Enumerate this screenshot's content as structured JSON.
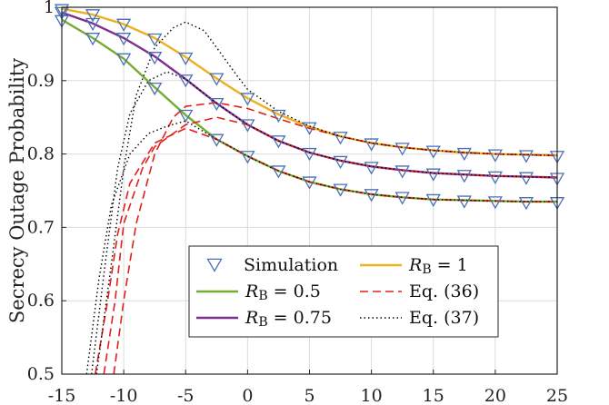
{
  "chart_data": {
    "type": "line",
    "title": "",
    "xlabel": "",
    "ylabel": "Secrecy Outage Probability",
    "xlim": [
      -15,
      25
    ],
    "ylim": [
      0.5,
      1
    ],
    "grid": true,
    "legend_position": "bottom-center",
    "xticks": [
      "-15",
      "-10",
      "-5",
      "0",
      "5",
      "10",
      "15",
      "20",
      "25"
    ],
    "yticks": [
      "0.5",
      "0.6",
      "0.7",
      "0.8",
      "0.9",
      "1"
    ],
    "x": [
      -15,
      -12.5,
      -10,
      -7.5,
      -5,
      -2.5,
      0,
      2.5,
      5,
      7.5,
      10,
      12.5,
      15,
      17.5,
      20,
      22.5,
      25
    ],
    "legend": [
      {
        "label": "Simulation",
        "sub": "",
        "eq": "",
        "style": "marker"
      },
      {
        "label": "R",
        "sub": "B",
        "eq": " = 1",
        "style": "line",
        "color": "#EDB120"
      },
      {
        "label": "R",
        "sub": "B",
        "eq": " = 0.5",
        "style": "line",
        "color": "#77AC30"
      },
      {
        "label": "Eq. (36)",
        "sub": "",
        "eq": "",
        "style": "dashed",
        "color": "#E0201B"
      },
      {
        "label": "R",
        "sub": "B",
        "eq": " = 0.75",
        "style": "line",
        "color": "#7E2F8E"
      },
      {
        "label": "Eq. (37)",
        "sub": "",
        "eq": "",
        "style": "dotted",
        "color": "#000000"
      }
    ],
    "series": [
      {
        "name": "RB = 1",
        "kind": "solid",
        "color": "#EDB120",
        "values": [
          0.998,
          0.99,
          0.977,
          0.958,
          0.932,
          0.903,
          0.876,
          0.854,
          0.837,
          0.824,
          0.815,
          0.809,
          0.805,
          0.802,
          0.8,
          0.799,
          0.798
        ]
      },
      {
        "name": "RB = 0.75",
        "kind": "solid",
        "color": "#7E2F8E",
        "values": [
          0.993,
          0.978,
          0.958,
          0.933,
          0.902,
          0.869,
          0.84,
          0.818,
          0.802,
          0.791,
          0.783,
          0.778,
          0.774,
          0.772,
          0.77,
          0.769,
          0.768
        ]
      },
      {
        "name": "RB = 0.5",
        "kind": "solid",
        "color": "#77AC30",
        "values": [
          0.983,
          0.958,
          0.93,
          0.891,
          0.853,
          0.82,
          0.797,
          0.777,
          0.762,
          0.752,
          0.745,
          0.741,
          0.738,
          0.737,
          0.736,
          0.735,
          0.735
        ]
      },
      {
        "name": "Eq. (36) RB = 1",
        "kind": "dashed",
        "color": "#E0201B",
        "points": [
          [
            -10.8,
            0.5
          ],
          [
            -10,
            0.6
          ],
          [
            -9,
            0.705
          ],
          [
            -7.5,
            0.8
          ],
          [
            -6,
            0.85
          ],
          [
            -5,
            0.865
          ],
          [
            -2.5,
            0.87
          ],
          [
            0,
            0.862
          ],
          [
            2.5,
            0.848
          ],
          [
            5,
            0.835
          ],
          [
            7.5,
            0.824
          ],
          [
            10,
            0.815
          ],
          [
            12.5,
            0.809
          ],
          [
            15,
            0.805
          ],
          [
            17.5,
            0.802
          ],
          [
            20,
            0.8
          ],
          [
            22.5,
            0.799
          ],
          [
            25,
            0.798
          ]
        ]
      },
      {
        "name": "Eq. (36) RB = 0.75",
        "kind": "dashed",
        "color": "#E0201B",
        "points": [
          [
            -11.6,
            0.5
          ],
          [
            -10.7,
            0.6
          ],
          [
            -10,
            0.705
          ],
          [
            -8.5,
            0.78
          ],
          [
            -7.5,
            0.81
          ],
          [
            -5,
            0.84
          ],
          [
            -2.5,
            0.85
          ],
          [
            0,
            0.84
          ],
          [
            2.5,
            0.818
          ],
          [
            5,
            0.802
          ],
          [
            7.5,
            0.791
          ],
          [
            10,
            0.783
          ],
          [
            12.5,
            0.778
          ],
          [
            15,
            0.774
          ],
          [
            17.5,
            0.772
          ],
          [
            20,
            0.77
          ],
          [
            22.5,
            0.769
          ],
          [
            25,
            0.768
          ]
        ]
      },
      {
        "name": "Eq. (36) RB = 0.5",
        "kind": "dashed",
        "color": "#E0201B",
        "points": [
          [
            -12.3,
            0.5
          ],
          [
            -11.3,
            0.6
          ],
          [
            -10.5,
            0.69
          ],
          [
            -9.5,
            0.76
          ],
          [
            -7.5,
            0.815
          ],
          [
            -5,
            0.835
          ],
          [
            -2.5,
            0.82
          ],
          [
            0,
            0.797
          ],
          [
            2.5,
            0.777
          ],
          [
            5,
            0.762
          ],
          [
            7.5,
            0.752
          ],
          [
            10,
            0.745
          ],
          [
            12.5,
            0.741
          ],
          [
            15,
            0.738
          ],
          [
            17.5,
            0.737
          ],
          [
            20,
            0.736
          ],
          [
            22.5,
            0.735
          ],
          [
            25,
            0.735
          ]
        ]
      },
      {
        "name": "Eq. (37) RB = 1",
        "kind": "dotted",
        "color": "#000000",
        "points": [
          [
            -12.2,
            0.5
          ],
          [
            -11,
            0.65
          ],
          [
            -10,
            0.78
          ],
          [
            -9,
            0.88
          ],
          [
            -7.5,
            0.945
          ],
          [
            -6,
            0.972
          ],
          [
            -5,
            0.98
          ],
          [
            -3.5,
            0.968
          ],
          [
            -2.5,
            0.945
          ],
          [
            -1,
            0.91
          ],
          [
            0,
            0.888
          ],
          [
            2.5,
            0.858
          ],
          [
            5,
            0.838
          ],
          [
            7.5,
            0.824
          ],
          [
            10,
            0.815
          ],
          [
            12.5,
            0.809
          ],
          [
            15,
            0.805
          ],
          [
            17.5,
            0.802
          ],
          [
            20,
            0.8
          ],
          [
            22.5,
            0.799
          ],
          [
            25,
            0.798
          ]
        ]
      },
      {
        "name": "Eq. (37) RB = 0.75",
        "kind": "dotted",
        "color": "#000000",
        "points": [
          [
            -12.6,
            0.5
          ],
          [
            -11.5,
            0.65
          ],
          [
            -10.5,
            0.78
          ],
          [
            -9.5,
            0.855
          ],
          [
            -8,
            0.9
          ],
          [
            -6.5,
            0.912
          ],
          [
            -5,
            0.902
          ],
          [
            -2.5,
            0.869
          ],
          [
            0,
            0.84
          ],
          [
            2.5,
            0.818
          ],
          [
            5,
            0.802
          ],
          [
            7.5,
            0.791
          ],
          [
            10,
            0.783
          ],
          [
            12.5,
            0.778
          ],
          [
            15,
            0.774
          ],
          [
            17.5,
            0.772
          ],
          [
            20,
            0.77
          ],
          [
            22.5,
            0.769
          ],
          [
            25,
            0.768
          ]
        ]
      },
      {
        "name": "Eq. (37) RB = 0.5",
        "kind": "dotted",
        "color": "#000000",
        "points": [
          [
            -13,
            0.5
          ],
          [
            -12,
            0.63
          ],
          [
            -11,
            0.73
          ],
          [
            -9.5,
            0.8
          ],
          [
            -8,
            0.828
          ],
          [
            -6.5,
            0.838
          ],
          [
            -5,
            0.845
          ],
          [
            -2.5,
            0.82
          ],
          [
            0,
            0.797
          ],
          [
            2.5,
            0.777
          ],
          [
            5,
            0.762
          ],
          [
            7.5,
            0.752
          ],
          [
            10,
            0.745
          ],
          [
            12.5,
            0.741
          ],
          [
            15,
            0.738
          ],
          [
            17.5,
            0.737
          ],
          [
            20,
            0.736
          ],
          [
            22.5,
            0.735
          ],
          [
            25,
            0.735
          ]
        ]
      }
    ],
    "markers": {
      "name": "Simulation",
      "color": "#4A6FB5",
      "values": [
        [
          0.997,
          0.99,
          0.977,
          0.957,
          0.931,
          0.903,
          0.876,
          0.853,
          0.836,
          0.823,
          0.814,
          0.808,
          0.804,
          0.801,
          0.799,
          0.798,
          0.797
        ],
        [
          0.993,
          0.978,
          0.958,
          0.932,
          0.901,
          0.869,
          0.84,
          0.818,
          0.801,
          0.79,
          0.782,
          0.777,
          0.773,
          0.771,
          0.769,
          0.768,
          0.767
        ],
        [
          0.982,
          0.958,
          0.93,
          0.89,
          0.853,
          0.82,
          0.797,
          0.777,
          0.762,
          0.752,
          0.745,
          0.741,
          0.738,
          0.736,
          0.735,
          0.734,
          0.734
        ]
      ]
    }
  }
}
